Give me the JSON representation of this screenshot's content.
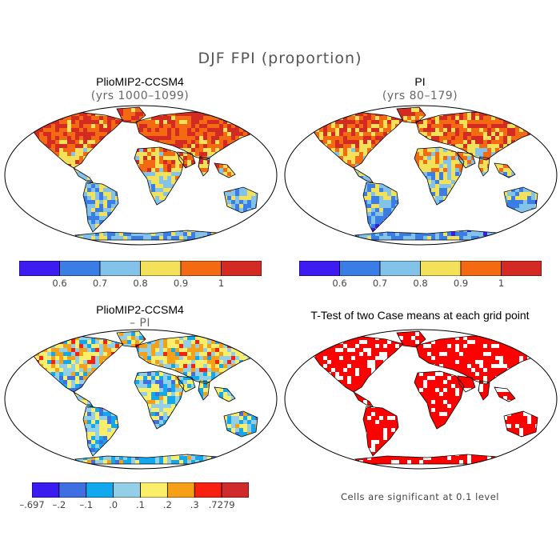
{
  "figure": {
    "title": "DJF FPI (proportion)",
    "footnote": "Cells are significant at 0.1 level"
  },
  "chart_data": [
    {
      "type": "heatmap",
      "title": "PlioMIP2-CCSM4",
      "subtitle": "(yrs 1000–1099)",
      "projection": "Robinson",
      "colorbar": {
        "colors": [
          "#3c1cf0",
          "#3a7de6",
          "#83c3ea",
          "#f4e15a",
          "#f46a12",
          "#d42a24"
        ],
        "tick_labels": [
          "0.6",
          "0.7",
          "0.8",
          "0.9",
          "1"
        ]
      }
    },
    {
      "type": "heatmap",
      "title": "PI",
      "subtitle": "(yrs 80–179)",
      "projection": "Robinson",
      "colorbar": {
        "colors": [
          "#3c1cf0",
          "#3a7de6",
          "#83c3ea",
          "#f4e15a",
          "#f46a12",
          "#d42a24"
        ],
        "tick_labels": [
          "0.6",
          "0.7",
          "0.8",
          "0.9",
          "1"
        ]
      }
    },
    {
      "type": "heatmap",
      "title": "PlioMIP2-CCSM4",
      "subtitle": "– PI",
      "projection": "Robinson",
      "colorbar": {
        "colors": [
          "#3a1cf0",
          "#3f6fe0",
          "#12a8f0",
          "#94cfe8",
          "#fbee6a",
          "#f6a018",
          "#f82010",
          "#d02a2c"
        ],
        "tick_labels": [
          "–.697",
          "–.2",
          "–.1",
          ".0",
          ".1",
          ".2",
          ".3",
          ".7279"
        ]
      }
    },
    {
      "type": "heatmap",
      "title": "T-Test of two Case means at each grid point",
      "subtitle": "",
      "projection": "Robinson",
      "significance_color": "#ff0000"
    }
  ]
}
